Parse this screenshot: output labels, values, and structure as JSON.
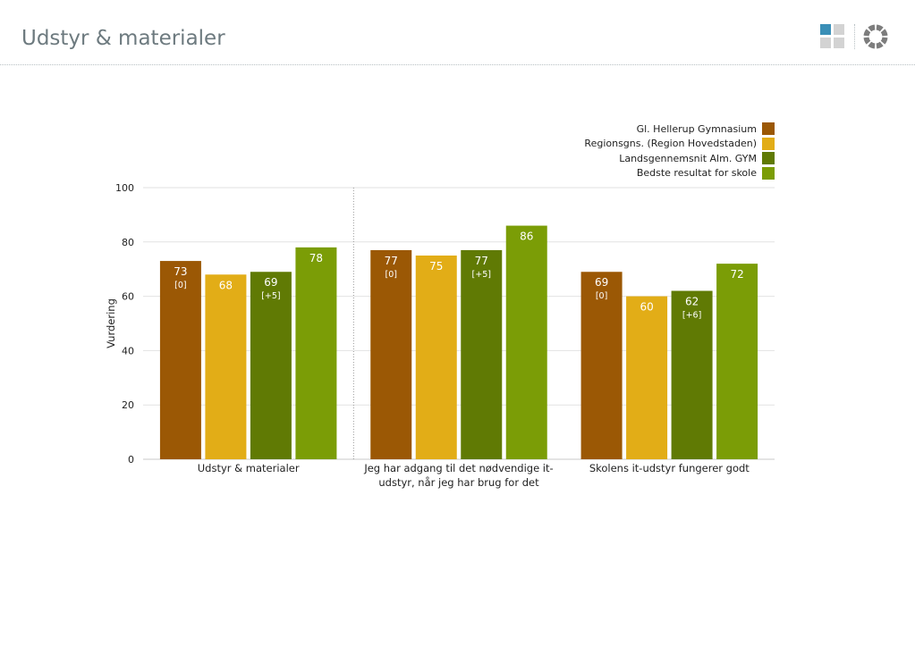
{
  "header": {
    "title": "Udstyr & materialer",
    "grid_icon": "grid-icon",
    "ring_icon": "ring-icon",
    "grid_icon_colors": [
      "#3a8fb7",
      "#d3d3d3",
      "#d3d3d3",
      "#d3d3d3"
    ],
    "ring_icon_color": "#7d7d7d"
  },
  "chart_data": {
    "type": "bar",
    "ylabel": "Vurdering",
    "ylim": [
      0,
      100
    ],
    "yticks": [
      0,
      20,
      40,
      60,
      80,
      100
    ],
    "grid": true,
    "legend_position": "top-right",
    "categories": [
      [
        "Udstyr & materialer"
      ],
      [
        "Jeg har adgang til det nødvendige it-",
        "udstyr, når jeg har brug for det"
      ],
      [
        "Skolens it-udstyr fungerer godt"
      ]
    ],
    "series": [
      {
        "name": "Gl. Hellerup Gymnasium",
        "color": "#9b5805",
        "values": [
          73,
          77,
          69
        ],
        "annotations": [
          "[0]",
          "[0]",
          "[0]"
        ]
      },
      {
        "name": "Regionsgns. (Region Hovedstaden)",
        "color": "#e2ad17",
        "values": [
          68,
          75,
          60
        ],
        "annotations": [
          "",
          "",
          ""
        ]
      },
      {
        "name": "Landsgennemsnit Alm. GYM",
        "color": "#607a04",
        "values": [
          69,
          77,
          62
        ],
        "annotations": [
          "[+5]",
          "[+5]",
          "[+6]"
        ]
      },
      {
        "name": "Bedste resultat for skole",
        "color": "#7b9d06",
        "values": [
          78,
          86,
          72
        ],
        "annotations": [
          "",
          "",
          ""
        ]
      }
    ],
    "data_labels": [
      [
        "73",
        "77",
        "69"
      ],
      [
        "68",
        "75",
        "60"
      ],
      [
        "69",
        "77",
        "62"
      ],
      [
        "78",
        "86",
        "72"
      ]
    ]
  }
}
